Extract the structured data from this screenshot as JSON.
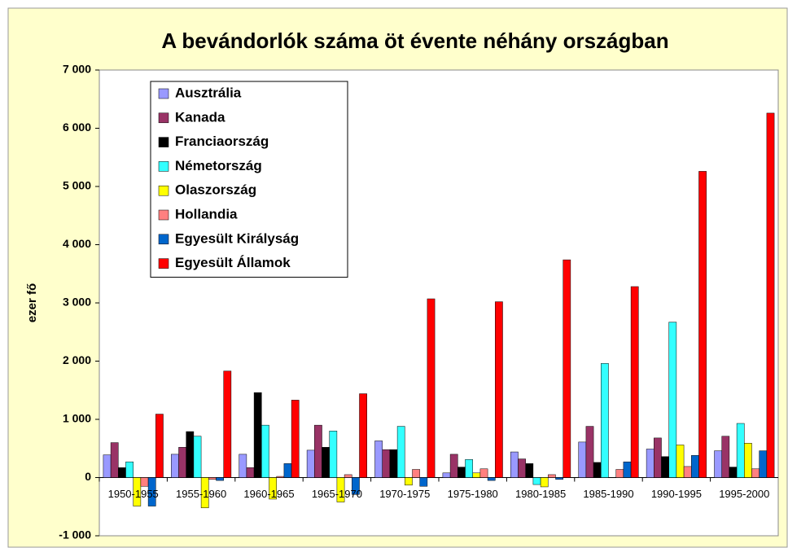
{
  "chart_data": {
    "type": "bar",
    "title": "A bevándorlók száma öt évente néhány országban",
    "y_label": "ezer fő",
    "categories": [
      "1950-1955",
      "1955-1960",
      "1960-1965",
      "1965-1970",
      "1970-1975",
      "1975-1980",
      "1980-1985",
      "1985-1990",
      "1990-1995",
      "1995-2000"
    ],
    "series": [
      {
        "name": "Ausztrália",
        "color": "#9999ff",
        "values": [
          390,
          400,
          400,
          470,
          630,
          80,
          440,
          610,
          490,
          460
        ]
      },
      {
        "name": "Kanada",
        "color": "#993366",
        "values": [
          600,
          520,
          170,
          900,
          480,
          400,
          320,
          880,
          680,
          710
        ]
      },
      {
        "name": "Franciaország",
        "color": "#000000",
        "values": [
          170,
          790,
          1460,
          520,
          480,
          180,
          240,
          260,
          360,
          180
        ]
      },
      {
        "name": "Németország",
        "color": "#33ffff",
        "values": [
          270,
          710,
          900,
          800,
          880,
          310,
          -120,
          1960,
          2670,
          930
        ]
      },
      {
        "name": "Olaszország",
        "color": "#ffff00",
        "values": [
          -490,
          -520,
          -370,
          -420,
          -130,
          80,
          -160,
          0,
          560,
          590
        ]
      },
      {
        "name": "Hollandia",
        "color": "#ff8080",
        "values": [
          -150,
          -30,
          20,
          50,
          140,
          150,
          50,
          140,
          190,
          150
        ]
      },
      {
        "name": "Egyesült Királyság",
        "color": "#0066cc",
        "values": [
          -490,
          -50,
          240,
          -290,
          -150,
          -50,
          -30,
          270,
          380,
          460
        ]
      },
      {
        "name": "Egyesült Államok",
        "color": "#ff0000",
        "values": [
          1090,
          1830,
          1330,
          1440,
          3070,
          3020,
          3740,
          3280,
          5260,
          6260
        ]
      }
    ],
    "ylim": [
      -1000,
      7000
    ],
    "yticks": [
      {
        "value": -1000,
        "label": "-1 000"
      },
      0,
      {
        "value": 1000,
        "label": "1 000"
      },
      {
        "value": 2000,
        "label": "2 000"
      },
      {
        "value": 3000,
        "label": "3 000"
      },
      {
        "value": 4000,
        "label": "4 000"
      },
      {
        "value": 5000,
        "label": "5 000"
      },
      {
        "value": 6000,
        "label": "6 000"
      },
      {
        "value": 7000,
        "label": "7 000"
      }
    ],
    "legend": "upper left"
  }
}
